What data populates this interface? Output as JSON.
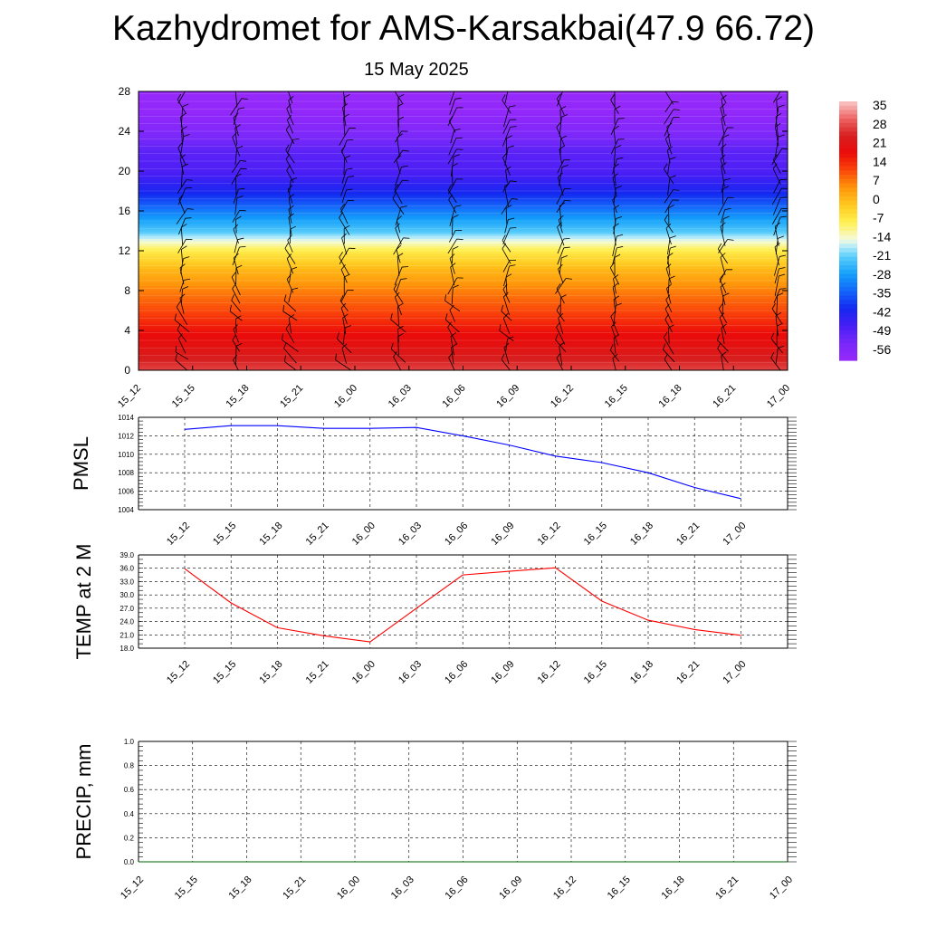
{
  "header": {
    "title": "Kazhydromet for AMS-Karsakbai(47.9 66.72)",
    "date": "15 May 2025"
  },
  "colors": {
    "pmsl_line": "#0000ff",
    "temp_line": "#ff0000",
    "precip_line": "#006400",
    "grid": "#000000"
  },
  "chart_data": [
    {
      "type": "heatmap",
      "description_free": true,
      "x_tick_labels": [
        "15_12",
        "15_15",
        "15_18",
        "15_21",
        "16_00",
        "16_03",
        "16_06",
        "16_09",
        "16_12",
        "16_15",
        "16_18",
        "16_21",
        "17_00"
      ],
      "y_ticks": [
        0,
        4,
        8,
        12,
        16,
        20,
        24,
        28
      ],
      "ylim": [
        0,
        28
      ],
      "colorbar": {
        "labels": [
          "35",
          "28",
          "21",
          "14",
          "7",
          "0",
          "-7",
          "-14",
          "-21",
          "-28",
          "-35",
          "-42",
          "-49",
          "-56"
        ],
        "range": [
          -63,
          42
        ]
      },
      "temperature_profile": [
        {
          "y": 0,
          "t": 32
        },
        {
          "y": 2,
          "t": 25
        },
        {
          "y": 4,
          "t": 20
        },
        {
          "y": 6,
          "t": 14
        },
        {
          "y": 8,
          "t": 9
        },
        {
          "y": 10,
          "t": 3
        },
        {
          "y": 12,
          "t": -6
        },
        {
          "y": 13,
          "t": -14
        },
        {
          "y": 14,
          "t": -22
        },
        {
          "y": 16,
          "t": -32
        },
        {
          "y": 18,
          "t": -43
        },
        {
          "y": 20,
          "t": -50
        },
        {
          "y": 22,
          "t": -52
        },
        {
          "y": 24,
          "t": -58
        },
        {
          "y": 26,
          "t": -62
        },
        {
          "y": 28,
          "t": -63
        }
      ],
      "wind_barbs": true
    },
    {
      "type": "line",
      "ylabel": "PMSL",
      "categories": [
        "15_12",
        "15_15",
        "15_18",
        "15_21",
        "16_00",
        "16_03",
        "16_06",
        "16_09",
        "16_12",
        "16_15",
        "16_18",
        "16_21",
        "17_00"
      ],
      "values": [
        1012.7,
        1013.1,
        1013.1,
        1012.8,
        1012.8,
        1012.9,
        1012.0,
        1011.0,
        1009.8,
        1009.1,
        1008.0,
        1006.4,
        1005.2
      ],
      "ylim": [
        1004,
        1014
      ],
      "y_ticks": [
        "1014",
        "1012",
        "1010",
        "1008",
        "1006",
        "1004"
      ],
      "grid": true
    },
    {
      "type": "line",
      "ylabel": "TEMP at 2 M",
      "categories": [
        "15_12",
        "15_15",
        "15_18",
        "15_21",
        "16_00",
        "16_03",
        "16_06",
        "16_09",
        "16_12",
        "16_15",
        "16_18",
        "16_21",
        "17_00"
      ],
      "values": [
        35.9,
        28.2,
        22.6,
        20.8,
        19.4,
        27.0,
        34.5,
        35.3,
        36.1,
        28.6,
        24.3,
        22.2,
        20.9
      ],
      "ylim": [
        18,
        39
      ],
      "y_ticks": [
        "39.0",
        "36.0",
        "33.0",
        "30.0",
        "27.0",
        "24.0",
        "21.0",
        "18.0"
      ],
      "grid": true
    },
    {
      "type": "line",
      "ylabel": "PRECIP, mm",
      "categories": [
        "15_12",
        "15_15",
        "15_18",
        "15_21",
        "16_00",
        "16_03",
        "16_06",
        "16_09",
        "16_12",
        "16_15",
        "16_18",
        "16_21",
        "17_00"
      ],
      "values": [
        0,
        0,
        0,
        0,
        0,
        0,
        0,
        0,
        0,
        0,
        0,
        0,
        0
      ],
      "ylim": [
        0,
        1
      ],
      "y_ticks": [
        "1.0",
        "0.8",
        "0.6",
        "0.4",
        "0.2",
        "0.0"
      ],
      "grid": true
    }
  ]
}
